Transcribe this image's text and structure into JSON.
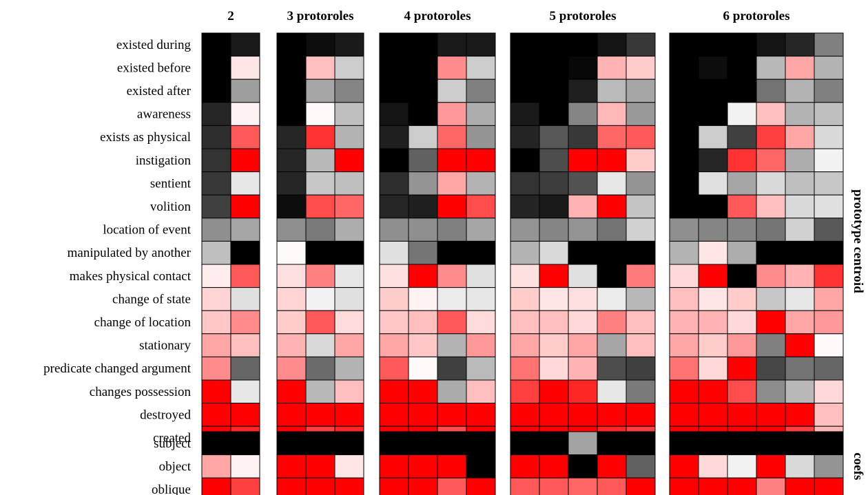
{
  "chart_data": {
    "type": "heatmap",
    "color_scale": {
      "low": "#000000",
      "mid": "#ffffff",
      "high": "#ff0000"
    },
    "rows": [
      "existed during",
      "existed before",
      "existed after",
      "awareness",
      "exists as physical",
      "instigation",
      "sentient",
      "volition",
      "location of event",
      "manipulated by another",
      "makes physical contact",
      "change of state",
      "change of location",
      "stationary",
      "predicate changed argument",
      "changes possession",
      "destroyed",
      "created"
    ],
    "coef_rows": [
      "subject",
      "object",
      "oblique"
    ],
    "side_labels": {
      "top": "prototype centroid",
      "bottom": "coefs"
    },
    "panels": [
      {
        "title": "2",
        "prototype_centroid": [
          [
            -1.0,
            -0.9
          ],
          [
            -1.0,
            0.1
          ],
          [
            -1.0,
            -0.38
          ],
          [
            -0.85,
            0.05
          ],
          [
            -0.82,
            0.65
          ],
          [
            -0.8,
            1.0
          ],
          [
            -0.78,
            -0.1
          ],
          [
            -0.75,
            1.0
          ],
          [
            -0.44,
            -0.35
          ],
          [
            -0.25,
            -1.0
          ],
          [
            0.07,
            0.65
          ],
          [
            0.17,
            -0.12
          ],
          [
            0.22,
            0.45
          ],
          [
            0.35,
            0.25
          ],
          [
            0.45,
            -0.6
          ],
          [
            1.0,
            -0.1
          ],
          [
            1.0,
            1.0
          ],
          [
            1.0,
            0.85
          ]
        ],
        "coefs": [
          [
            -1.0,
            -1.0
          ],
          [
            0.35,
            0.05
          ],
          [
            1.0,
            0.75
          ]
        ]
      },
      {
        "title": "3 protoroles",
        "prototype_centroid": [
          [
            -1.0,
            -0.95,
            -0.9
          ],
          [
            -1.0,
            0.25,
            -0.2
          ],
          [
            -1.0,
            -0.35,
            -0.48
          ],
          [
            -1.0,
            0.02,
            -0.25
          ],
          [
            -0.85,
            0.8,
            -0.3
          ],
          [
            -0.85,
            -0.28,
            1.0
          ],
          [
            -0.85,
            -0.22,
            -0.25
          ],
          [
            -0.95,
            0.7,
            0.6
          ],
          [
            -0.44,
            -0.52,
            -0.32
          ],
          [
            0.02,
            -1.0,
            -1.0
          ],
          [
            0.12,
            0.5,
            -0.1
          ],
          [
            0.17,
            -0.05,
            -0.12
          ],
          [
            0.2,
            0.65,
            0.14
          ],
          [
            0.3,
            -0.15,
            0.35
          ],
          [
            0.45,
            -0.58,
            -0.3
          ],
          [
            1.0,
            -0.28,
            0.25
          ],
          [
            1.0,
            1.0,
            1.0
          ],
          [
            1.0,
            0.75,
            0.85
          ]
        ],
        "coefs": [
          [
            -1.0,
            -1.0,
            -1.0
          ],
          [
            1.0,
            1.0,
            0.1
          ],
          [
            1.0,
            1.0,
            1.0
          ]
        ]
      },
      {
        "title": "4 protoroles",
        "prototype_centroid": [
          [
            -1.0,
            -1.0,
            -0.9,
            -0.9
          ],
          [
            -1.0,
            -1.0,
            0.45,
            -0.2
          ],
          [
            -1.0,
            -1.0,
            -0.2,
            -0.5
          ],
          [
            -0.92,
            -1.0,
            0.4,
            -0.32
          ],
          [
            -0.88,
            -0.2,
            0.6,
            -0.42
          ],
          [
            -1.0,
            -0.62,
            1.0,
            1.0
          ],
          [
            -0.82,
            -0.42,
            0.35,
            -0.3
          ],
          [
            -0.85,
            -0.88,
            1.0,
            0.7
          ],
          [
            -0.44,
            -0.44,
            -0.5,
            -0.35
          ],
          [
            -0.12,
            -0.54,
            -1.0,
            -1.0
          ],
          [
            0.12,
            1.0,
            0.45,
            -0.12
          ],
          [
            0.2,
            0.05,
            -0.08,
            -0.1
          ],
          [
            0.22,
            0.25,
            0.65,
            0.14
          ],
          [
            0.35,
            0.22,
            -0.3,
            0.4
          ],
          [
            0.65,
            0.02,
            -0.75,
            -0.27
          ],
          [
            1.0,
            1.0,
            -0.33,
            0.25
          ],
          [
            1.0,
            1.0,
            1.0,
            1.0
          ],
          [
            1.0,
            1.0,
            0.7,
            1.0
          ]
        ],
        "coefs": [
          [
            -1.0,
            -1.0,
            -1.0,
            -1.0
          ],
          [
            1.0,
            1.0,
            1.0,
            -1.0
          ],
          [
            1.0,
            1.0,
            0.65,
            1.0
          ]
        ]
      },
      {
        "title": "5 protoroles",
        "prototype_centroid": [
          [
            -1.0,
            -1.0,
            -1.0,
            -0.92,
            -0.78
          ],
          [
            -1.0,
            -1.0,
            -0.97,
            0.3,
            0.2
          ],
          [
            -1.0,
            -1.0,
            -0.88,
            -0.27,
            -0.35
          ],
          [
            -0.9,
            -1.0,
            -0.48,
            0.28,
            -0.4
          ],
          [
            -0.86,
            -0.66,
            -0.78,
            0.6,
            0.65
          ],
          [
            -1.0,
            -0.7,
            1.0,
            1.0,
            0.2
          ],
          [
            -0.8,
            -0.76,
            -0.68,
            -0.1,
            -0.42
          ],
          [
            -0.86,
            -0.9,
            0.3,
            1.0,
            -0.23
          ],
          [
            -0.42,
            -0.48,
            -0.42,
            -0.55,
            -0.18
          ],
          [
            -0.3,
            -0.15,
            -1.0,
            -1.0,
            -1.0
          ],
          [
            0.12,
            1.0,
            -0.12,
            -1.0,
            0.52
          ],
          [
            0.2,
            0.1,
            0.12,
            -0.08,
            -0.28
          ],
          [
            0.25,
            0.25,
            0.15,
            0.5,
            0.25
          ],
          [
            0.35,
            0.2,
            0.35,
            -0.35,
            0.25
          ],
          [
            0.55,
            0.15,
            0.3,
            -0.7,
            -0.75
          ],
          [
            0.75,
            1.0,
            0.85,
            -0.1,
            -0.52
          ],
          [
            1.0,
            1.0,
            1.0,
            1.0,
            1.0
          ],
          [
            1.0,
            1.0,
            1.0,
            0.85,
            0.75
          ]
        ],
        "coefs": [
          [
            -1.0,
            -1.0,
            -0.36,
            -1.0,
            -1.0
          ],
          [
            1.0,
            1.0,
            -1.0,
            1.0,
            -0.62
          ],
          [
            0.65,
            0.65,
            0.6,
            0.65,
            1.0
          ]
        ]
      },
      {
        "title": "6 protoroles",
        "prototype_centroid": [
          [
            -1.0,
            -1.0,
            -1.0,
            -0.92,
            -0.85,
            -0.5
          ],
          [
            -1.0,
            -0.95,
            -1.0,
            -0.28,
            0.35,
            -0.3
          ],
          [
            -1.0,
            -1.0,
            -1.0,
            -0.55,
            -0.3,
            -0.5
          ],
          [
            -1.0,
            -1.0,
            -0.05,
            0.25,
            -0.3,
            -0.25
          ],
          [
            -1.0,
            -0.2,
            -0.75,
            0.75,
            0.35,
            -0.15
          ],
          [
            -1.0,
            -0.85,
            0.8,
            0.6,
            -0.32,
            -0.05
          ],
          [
            -1.0,
            -0.12,
            -0.35,
            -0.15,
            -0.25,
            -0.22
          ],
          [
            -1.0,
            -1.0,
            0.65,
            0.25,
            -0.15,
            -0.12
          ],
          [
            -0.44,
            -0.48,
            -0.48,
            -0.54,
            -0.18,
            -0.65
          ],
          [
            -0.3,
            0.1,
            -0.32,
            -1.0,
            -1.0,
            -1.0
          ],
          [
            0.15,
            1.0,
            -1.0,
            0.45,
            0.3,
            0.8
          ],
          [
            0.25,
            0.1,
            0.2,
            -0.22,
            -0.1,
            0.35
          ],
          [
            0.3,
            0.3,
            0.15,
            1.0,
            0.35,
            0.4
          ],
          [
            0.35,
            0.2,
            0.4,
            -0.5,
            1.0,
            0.02
          ],
          [
            0.55,
            0.15,
            1.0,
            -0.72,
            -0.55,
            -0.6
          ],
          [
            1.0,
            1.0,
            0.7,
            -0.45,
            -0.28,
            0.15
          ],
          [
            1.0,
            1.0,
            1.0,
            1.0,
            1.0,
            0.25
          ],
          [
            1.0,
            1.0,
            1.0,
            1.0,
            0.75,
            0.28
          ]
        ],
        "coefs": [
          [
            -1.0,
            -1.0,
            -1.0,
            -1.0,
            -1.0,
            -1.0
          ],
          [
            1.0,
            0.15,
            -0.05,
            1.0,
            -0.15,
            -0.42
          ],
          [
            1.0,
            1.0,
            1.0,
            0.5,
            1.0,
            1.0
          ]
        ]
      }
    ]
  }
}
